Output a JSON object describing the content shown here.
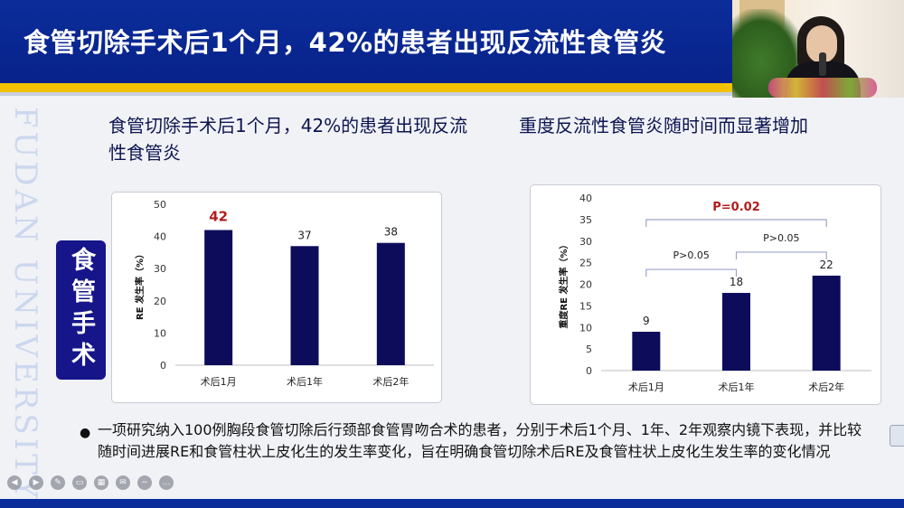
{
  "header": {
    "title": "食管切除手术后1个月，42%的患者出现反流性食管炎"
  },
  "watermark": "FUDAN UNIVERSITY",
  "side_label": "食管手术",
  "left_panel": {
    "title": "食管切除手术后1个月，42%的患者出现反流性食管炎"
  },
  "right_panel": {
    "title": "重度反流性食管炎随时间而显著增加"
  },
  "bullet": "一项研究纳入100例胸段食管切除后行颈部食管胃吻合术的患者，分别于术后1个月、1年、2年观察内镜下表现，并比较随时间进展RE和食管柱状上皮化生的发生率变化，旨在明确食管切除术后RE及食管柱状上皮化生发生率的变化情况",
  "colors": {
    "header_bg": "#0b2d9a",
    "stripe": "#f2c200",
    "bar": "#0d0c5b",
    "highlight_label": "#b01e1e",
    "side_label_bg": "#16158a"
  },
  "icons": [
    "prev-icon",
    "play-icon",
    "pen-icon",
    "screen-icon",
    "grid-icon",
    "comment-icon",
    "minus-icon",
    "more-icon"
  ],
  "chart_data": [
    {
      "type": "bar",
      "categories": [
        "术后1月",
        "术后1年",
        "术后2年"
      ],
      "values": [
        42,
        37,
        38
      ],
      "highlight_index": 0,
      "title": "",
      "xlabel": "",
      "ylabel": "RE 发生率（%）",
      "ylim": [
        0,
        50
      ],
      "yticks": [
        0,
        10,
        20,
        30,
        40,
        50
      ],
      "grid": false,
      "legend": "none"
    },
    {
      "type": "bar",
      "categories": [
        "术后1月",
        "术后1年",
        "术后2年"
      ],
      "values": [
        9,
        18,
        22
      ],
      "title": "",
      "xlabel": "",
      "ylabel": "重度RE 发生率（%）",
      "ylim": [
        0,
        40
      ],
      "yticks": [
        0,
        5,
        10,
        15,
        20,
        25,
        30,
        35,
        40
      ],
      "grid": false,
      "legend": "none",
      "annotations": [
        {
          "text": "P>0.05",
          "from": 0,
          "to": 1
        },
        {
          "text": "P>0.05",
          "from": 1,
          "to": 2
        },
        {
          "text": "P=0.02",
          "from": 0,
          "to": 2,
          "highlight": true
        }
      ]
    }
  ]
}
